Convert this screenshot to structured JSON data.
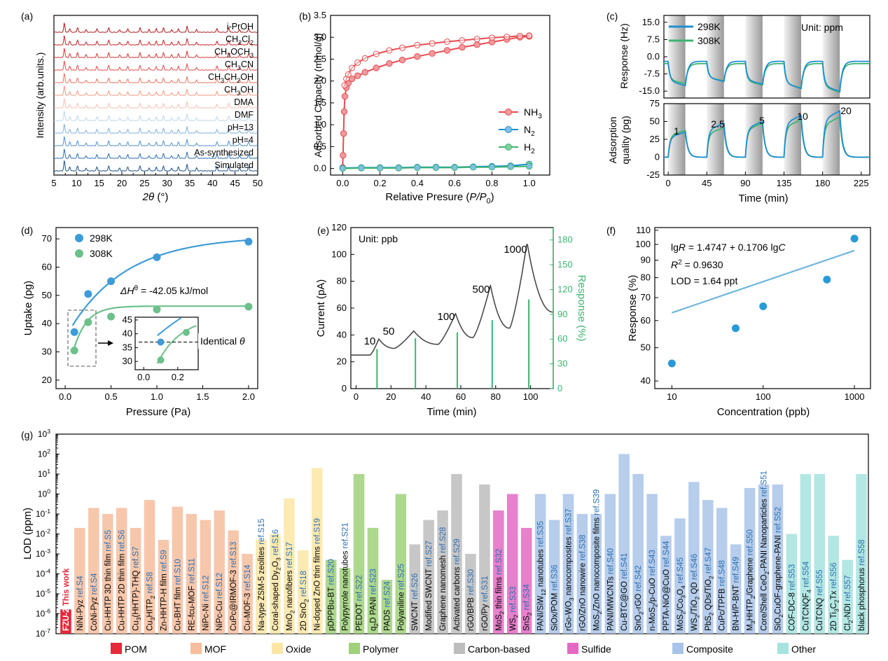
{
  "panel_labels": {
    "a": "(a)",
    "b": "(b)",
    "c": "(c)",
    "d": "(d)",
    "e": "(e)",
    "f": "(f)",
    "g": "(g)"
  },
  "chart_data": [
    {
      "id": "a",
      "type": "line",
      "description": "Stacked PXRD patterns",
      "title": "",
      "xlabel": "2θ (°)",
      "ylabel": "Intensity (arb.units.)",
      "xlim": [
        5,
        50
      ],
      "xticks": [
        5,
        10,
        15,
        20,
        25,
        30,
        35,
        40,
        45,
        50
      ],
      "series": [
        {
          "name": "i-PrOH",
          "color": "#b01818"
        },
        {
          "name": "CH2Cl2",
          "color": "#c42020"
        },
        {
          "name": "CH3OCH3",
          "color": "#d23232"
        },
        {
          "name": "CH3CN",
          "color": "#e14b4b"
        },
        {
          "name": "CH3CH2OH",
          "color": "#e8735e"
        },
        {
          "name": "CH3OH",
          "color": "#f09a80"
        },
        {
          "name": "DMA",
          "color": "#f6bfae"
        },
        {
          "name": "DMF",
          "color": "#bcd6ec"
        },
        {
          "name": "pH=13",
          "color": "#7fb1de"
        },
        {
          "name": "pH=4",
          "color": "#4f90cf"
        },
        {
          "name": "As-synthesized",
          "color": "#2a6db1"
        },
        {
          "name": "Simulated",
          "color": "#1b4f88"
        }
      ],
      "peaks": [
        7.3,
        8.5,
        10.2,
        12.1,
        14.5,
        17.1,
        19.5,
        21.3,
        24,
        26,
        27.6,
        29.2,
        31,
        32.5,
        34.4,
        36.5,
        41,
        43.6,
        46,
        48
      ]
    },
    {
      "id": "b",
      "type": "line",
      "title": "",
      "xlabel": "Relative Presure (P/P0)",
      "ylabel": "Adsorbed Capacity (mmol/g)",
      "xlim": [
        0,
        1.05
      ],
      "ylim": [
        0,
        3.5
      ],
      "xticks": [
        0.0,
        0.2,
        0.4,
        0.6,
        0.8,
        1.0
      ],
      "yticks": [
        0.0,
        0.5,
        1.0,
        1.5,
        2.0,
        2.5,
        3.0,
        3.5
      ],
      "series": [
        {
          "name": "NH3",
          "color": "#e84a50",
          "x": [
            0,
            0.002,
            0.005,
            0.008,
            0.012,
            0.02,
            0.03,
            0.05,
            0.08,
            0.12,
            0.18,
            0.25,
            0.32,
            0.4,
            0.48,
            0.56,
            0.64,
            0.72,
            0.8,
            0.88,
            0.95,
            1.0
          ],
          "y": [
            0.02,
            0.3,
            0.8,
            1.3,
            1.65,
            1.85,
            1.95,
            2.05,
            2.12,
            2.2,
            2.3,
            2.4,
            2.48,
            2.56,
            2.63,
            2.7,
            2.77,
            2.83,
            2.89,
            2.95,
            3.0,
            3.02
          ]
        },
        {
          "name": "NH3 desorption",
          "color": "#e84a50",
          "x": [
            0.01,
            0.02,
            0.03,
            0.05,
            0.08,
            0.12,
            0.18,
            0.25,
            0.32,
            0.4,
            0.48,
            0.56,
            0.64,
            0.72,
            0.8,
            0.88,
            0.95,
            1.0
          ],
          "y": [
            1.9,
            2.05,
            2.15,
            2.3,
            2.42,
            2.52,
            2.62,
            2.7,
            2.76,
            2.82,
            2.86,
            2.9,
            2.93,
            2.96,
            2.99,
            3.01,
            3.03,
            3.04
          ]
        },
        {
          "name": "N2",
          "color": "#1f8fd0",
          "x": [
            0,
            0.1,
            0.2,
            0.3,
            0.4,
            0.5,
            0.6,
            0.7,
            0.8,
            0.9,
            1.0
          ],
          "y": [
            0.01,
            0.02,
            0.02,
            0.02,
            0.03,
            0.03,
            0.03,
            0.04,
            0.05,
            0.06,
            0.1
          ]
        },
        {
          "name": "H2",
          "color": "#3db470",
          "x": [
            0,
            0.1,
            0.2,
            0.3,
            0.4,
            0.5,
            0.6,
            0.7,
            0.8,
            0.9,
            1.0
          ],
          "y": [
            0.0,
            0.01,
            0.01,
            0.01,
            0.02,
            0.02,
            0.02,
            0.03,
            0.03,
            0.04,
            0.05
          ]
        }
      ]
    },
    {
      "id": "c",
      "type": "line",
      "unit_label": "Unit: ppm",
      "xlabel": "Time (min)",
      "ylabel_top": "Response (Hz)",
      "ylabel_bottom": "Adsorption quality (pg)",
      "xlim": [
        -5,
        235
      ],
      "xticks": [
        0,
        45,
        90,
        135,
        180,
        225
      ],
      "ylim_top": [
        -15,
        15
      ],
      "yticks_top": [
        15.0,
        7.5,
        0.0,
        -7.5,
        -15.0
      ],
      "ylim_bottom": [
        -25,
        75
      ],
      "yticks_bottom": [
        75,
        50,
        25,
        0,
        -25
      ],
      "conc_labels": [
        "1",
        "2.5",
        "5",
        "10",
        "20"
      ],
      "series": [
        {
          "name": "298K",
          "color": "#1f8fd0"
        },
        {
          "name": "308K",
          "color": "#3db470"
        }
      ]
    },
    {
      "id": "d",
      "type": "scatter",
      "xlabel": "Pressure (Pa)",
      "ylabel": "Uptake (pg)",
      "xlim": [
        0,
        2.1
      ],
      "ylim": [
        20,
        70
      ],
      "xticks": [
        0.0,
        0.5,
        1.0,
        1.5,
        2.0
      ],
      "yticks": [
        20,
        30,
        40,
        50,
        60,
        70
      ],
      "annotation": "ΔHθ = -42.05 kJ/mol",
      "inset": {
        "xticks": [
          "0.0",
          "0.2"
        ],
        "yticks": [
          "45",
          "40",
          "35",
          "30"
        ],
        "label": "Identical θ"
      },
      "series": [
        {
          "name": "298K",
          "color": "#3d9bd8",
          "x": [
            0.1,
            0.25,
            0.5,
            1.0,
            2.0
          ],
          "y": [
            37,
            50.5,
            55,
            63.5,
            69
          ]
        },
        {
          "name": "308K",
          "color": "#6dc08a",
          "x": [
            0.1,
            0.25,
            0.5,
            1.0,
            2.0
          ],
          "y": [
            30.5,
            40.5,
            42.5,
            45,
            46
          ]
        }
      ]
    },
    {
      "id": "e",
      "type": "line",
      "unit_label": "Unit: ppb",
      "xlabel": "Time (min)",
      "ylabel": "Current (pA)",
      "ylabel_right": "Response (%)",
      "xlim": [
        -3,
        113
      ],
      "ylim": [
        0,
        120
      ],
      "yticks": [
        0,
        20,
        40,
        60,
        80,
        100,
        120
      ],
      "xticks": [
        0,
        20,
        40,
        60,
        80,
        100
      ],
      "ylim_right": [
        0,
        195
      ],
      "yticks_right": [
        0,
        30,
        60,
        90,
        120,
        150,
        180
      ],
      "conc_labels": [
        "10",
        "50",
        "100",
        "500",
        "1000"
      ],
      "series": [
        {
          "name": "Current",
          "color": "#4a4a4a"
        },
        {
          "name": "Response",
          "color": "#3db470",
          "x": [
            12,
            34,
            58,
            78,
            99
          ],
          "y": [
            48,
            61,
            68,
            83,
            108
          ]
        }
      ]
    },
    {
      "id": "f",
      "type": "scatter",
      "xlabel": "Concentration (ppb)",
      "ylabel": "Response (%)",
      "xscale": "log",
      "yscale": "log",
      "xticks": [
        "10",
        "100",
        "1000"
      ],
      "yticks": [
        "40",
        "50",
        "60",
        "70",
        "80",
        "90",
        "100",
        "110"
      ],
      "equation": "lgR = 1.4747 + 0.1706 lgC",
      "r2": "R2 = 0.9630",
      "lod": "LOD = 1.64 ppt",
      "series": [
        {
          "name": "data",
          "color": "#2a9ad6",
          "x": [
            10,
            50,
            100,
            500,
            1000
          ],
          "y": [
            45,
            57,
            66,
            79,
            104
          ]
        }
      ]
    },
    {
      "id": "g",
      "type": "bar",
      "ylabel": "LOD (ppm)",
      "yscale": "log",
      "yticks": [
        "10-7",
        "10-6",
        "10-5",
        "10-4",
        "10-3",
        "10-2",
        "10-1",
        "100",
        "101",
        "102",
        "103"
      ],
      "legend": [
        {
          "name": "POM",
          "color": "#e5283a"
        },
        {
          "name": "MOF",
          "color": "#f6bd9e"
        },
        {
          "name": "Oxide",
          "color": "#fbe6a6"
        },
        {
          "name": "Polymer",
          "color": "#9fd17a"
        },
        {
          "name": "Carbon-based",
          "color": "#bdbdbd"
        },
        {
          "name": "Sulfide",
          "color": "#e36ac4"
        },
        {
          "name": "Composite",
          "color": "#a9c4e8"
        },
        {
          "name": "Other",
          "color": "#a6e3de"
        }
      ],
      "bars": [
        {
          "name": "FZU-2",
          "ref": "This work",
          "cat": "POM",
          "value": 1.64e-06
        },
        {
          "name": "NiNi-Pyz",
          "ref": "ref.S4",
          "cat": "MOF",
          "value": 0.02
        },
        {
          "name": "CoNi-Pyz",
          "ref": "ref.S4",
          "cat": "MOF",
          "value": 0.2
        },
        {
          "name": "Cu-HHTP 3D thin film",
          "ref": "ref.S5",
          "cat": "MOF",
          "value": 0.1
        },
        {
          "name": "Cu-HHTP 2D thin film",
          "ref": "ref.S6",
          "cat": "MOF",
          "value": 0.2
        },
        {
          "name": "Cu3(HHTP)-THQ",
          "ref": "ref.S7",
          "cat": "MOF",
          "value": 0.02
        },
        {
          "name": "Cu3HITP2",
          "ref": "ref.S8",
          "cat": "MOF",
          "value": 0.5
        },
        {
          "name": "Zn-HHTP-H film",
          "ref": "ref.S9",
          "cat": "MOF",
          "value": 0.005
        },
        {
          "name": "Cu-BHT film",
          "ref": "ref.S10",
          "cat": "MOF",
          "value": 0.23
        },
        {
          "name": "RE-fcu-MOF",
          "ref": "ref.S11",
          "cat": "MOF",
          "value": 0.1
        },
        {
          "name": "NiPc-Ni",
          "ref": "ref.S12",
          "cat": "MOF",
          "value": 0.05
        },
        {
          "name": "NiPc-Cu",
          "ref": "ref.S12",
          "cat": "MOF",
          "value": 0.15
        },
        {
          "name": "CuPc@IRMOF-3",
          "ref": "ref.S13",
          "cat": "MOF",
          "value": 0.015
        },
        {
          "name": "Cu-MOF-3",
          "ref": "ref.S14",
          "cat": "MOF",
          "value": 0.001
        },
        {
          "name": "Na-type ZSM-5 zeolites",
          "ref": "ref.S15",
          "cat": "Oxide",
          "value": 0.005
        },
        {
          "name": "Coral-shaped Dy2O3",
          "ref": "ref.S16",
          "cat": "Oxide",
          "value": 0.01
        },
        {
          "name": "MnO2 nanofibers",
          "ref": "ref.S17",
          "cat": "Oxide",
          "value": 0.6
        },
        {
          "name": "2D SnO2",
          "ref": "ref.S18",
          "cat": "Oxide",
          "value": 0.0015
        },
        {
          "name": "Ni-doped ZnO thin films",
          "ref": "ref.S19",
          "cat": "Oxide",
          "value": 20
        },
        {
          "name": "pDPPBu-BT",
          "ref": "ref.S20",
          "cat": "Polymer",
          "value": 0.0005
        },
        {
          "name": "Polypyrrole nanotubes",
          "ref": "ref.S21",
          "cat": "Polymer",
          "value": 0.0002
        },
        {
          "name": "PEDOT",
          "ref": "ref.S22",
          "cat": "Polymer",
          "value": 10
        },
        {
          "name": "q2D PANI",
          "ref": "ref.S23",
          "cat": "Polymer",
          "value": 0.02
        },
        {
          "name": "PADS",
          "ref": "ref.S24",
          "cat": "Polymer",
          "value": 5e-05
        },
        {
          "name": "Polyaniline",
          "ref": "ref.S25",
          "cat": "Polymer",
          "value": 1
        },
        {
          "name": "SWCNT",
          "ref": "ref.S26",
          "cat": "Carbon-based",
          "value": 0.003
        },
        {
          "name": "Modified SWCNT",
          "ref": "ref.S27",
          "cat": "Carbon-based",
          "value": 0.05
        },
        {
          "name": "Graphene nanomesh",
          "ref": "ref.S28",
          "cat": "Carbon-based",
          "value": 0.15
        },
        {
          "name": "Activated carbons",
          "ref": "ref.S29",
          "cat": "Carbon-based",
          "value": 10
        },
        {
          "name": "rGO/BPB",
          "ref": "ref.S30",
          "cat": "Carbon-based",
          "value": 0.001
        },
        {
          "name": "rGO/Py",
          "ref": "ref.S31",
          "cat": "Carbon-based",
          "value": 3
        },
        {
          "name": "MoS2 thin films",
          "ref": "ref.S32",
          "cat": "Sulfide",
          "value": 0.15
        },
        {
          "name": "WS2",
          "ref": "ref.S33",
          "cat": "Sulfide",
          "value": 1
        },
        {
          "name": "SnS2",
          "ref": "ref.S34",
          "cat": "Sulfide",
          "value": 0.02
        },
        {
          "name": "PANI/SiW12 nanotubes",
          "ref": "ref.S35",
          "cat": "Composite",
          "value": 1
        },
        {
          "name": "SiOx/POM",
          "ref": "ref.S36",
          "cat": "Composite",
          "value": 0.05
        },
        {
          "name": "rGo-WO3 nanocomposites",
          "ref": "ref.S37",
          "cat": "Composite",
          "value": 1
        },
        {
          "name": "rGO/ZnO nanowire",
          "ref": "ref.S38",
          "cat": "Composite",
          "value": 0.1
        },
        {
          "name": "MoS2/ZnO nanocomposite films",
          "ref": "ref.S39",
          "cat": "Composite",
          "value": 0.1
        },
        {
          "name": "PANI/MWCNTs",
          "ref": "ref.S40",
          "cat": "Composite",
          "value": 1
        },
        {
          "name": "Cu-BTC@GO",
          "ref": "ref.S41",
          "cat": "Composite",
          "value": 100
        },
        {
          "name": "SnO2-rGO",
          "ref": "ref.S42",
          "cat": "Composite",
          "value": 10
        },
        {
          "name": "n-MoS2/p-CuO",
          "ref": "ref.S43",
          "cat": "Composite",
          "value": 1
        },
        {
          "name": "PPTA-NiO@CuO",
          "ref": "ref.S44",
          "cat": "Composite",
          "value": 0.008
        },
        {
          "name": "MoS2/Co3O4",
          "ref": "ref.S45",
          "cat": "Composite",
          "value": 0.06
        },
        {
          "name": "WS2/TiO2 QD",
          "ref": "ref.S46",
          "cat": "Composite",
          "value": 4
        },
        {
          "name": "PbS2 QDs/TiO2",
          "ref": "ref.S47",
          "cat": "Composite",
          "value": 0.5
        },
        {
          "name": "CuPc/TPFB",
          "ref": "ref.S48",
          "cat": "Composite",
          "value": 0.2
        },
        {
          "name": "BN-H/P-BNT",
          "ref": "ref.S49",
          "cat": "Composite",
          "value": 0.003
        },
        {
          "name": "M3HHTP2/Graphene",
          "ref": "ref.S50",
          "cat": "Composite",
          "value": 2
        },
        {
          "name": "Core/Shell CeO2-PANI Nanoparticles",
          "ref": "ref.S51",
          "cat": "Composite",
          "value": 3
        },
        {
          "name": "SiO2CuOF-graphene-PANI",
          "ref": "ref.S52",
          "cat": "Composite",
          "value": 3
        },
        {
          "name": "COF-DC-8",
          "ref": "ref.S53",
          "cat": "Other",
          "value": 0.01
        },
        {
          "name": "CuTCNQF4",
          "ref": "ref.S54",
          "cat": "Other",
          "value": 10
        },
        {
          "name": "CuTCNQ",
          "ref": "ref.S55",
          "cat": "Other",
          "value": 10
        },
        {
          "name": "2D Ti3C2Tx",
          "ref": "ref.S56",
          "cat": "Other",
          "value": 0.008
        },
        {
          "name": "Cl2-NDI",
          "ref": "ref.S57",
          "cat": "Other",
          "value": 0.0005
        },
        {
          "name": "black phosphorus",
          "ref": "ref.S58",
          "cat": "Other",
          "value": 10
        }
      ]
    }
  ]
}
